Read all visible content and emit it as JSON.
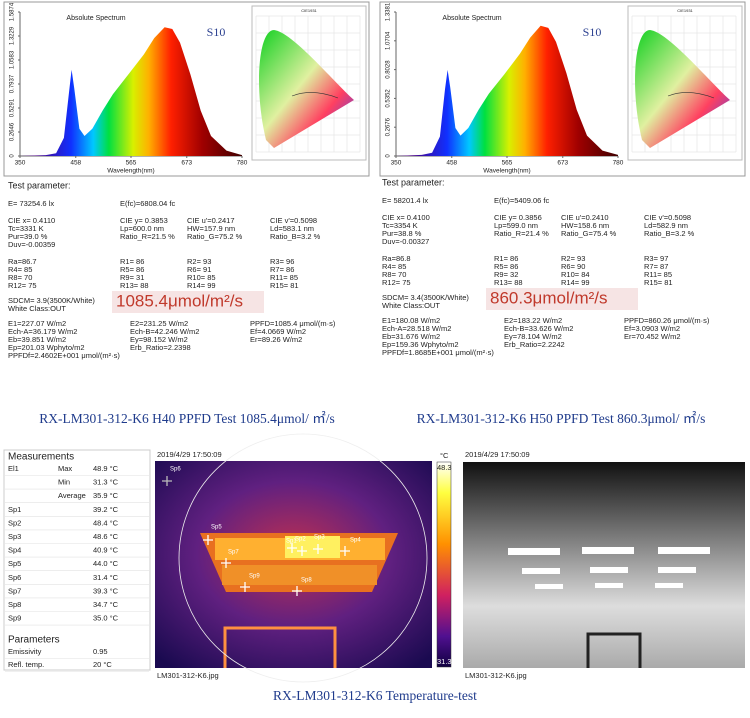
{
  "chart_data": [
    {
      "type": "area",
      "title": "Absolute Spectrum",
      "annotation": "S10",
      "x_label": "Wavelength(nm)",
      "inset_title": "CIE1931",
      "x": [
        350,
        400,
        420,
        435,
        445,
        450,
        455,
        465,
        475,
        490,
        510,
        530,
        560,
        590,
        610,
        630,
        645,
        660,
        680,
        700,
        720,
        750,
        780
      ],
      "values": [
        0,
        0.01,
        0.03,
        0.2,
        0.7,
        0.95,
        0.75,
        0.3,
        0.22,
        0.3,
        0.5,
        0.68,
        0.9,
        1.12,
        1.3,
        1.42,
        1.4,
        1.25,
        0.9,
        0.5,
        0.22,
        0.06,
        0.01
      ],
      "xlim": [
        350,
        780
      ],
      "xticks": [
        350,
        458,
        565,
        673,
        780
      ],
      "ylim": [
        0,
        1.5874
      ],
      "yticks": [
        0,
        0.2646,
        0.5291,
        0.7937,
        1.0583,
        1.3229,
        1.5874
      ]
    },
    {
      "type": "area",
      "title": "Absolute Spectrum",
      "annotation": "S10",
      "x_label": "Wavelength(nm)",
      "inset_title": "CIE1931",
      "x": [
        350,
        400,
        420,
        435,
        445,
        450,
        455,
        465,
        475,
        490,
        510,
        530,
        560,
        590,
        610,
        630,
        645,
        660,
        680,
        700,
        720,
        750,
        780
      ],
      "values": [
        0,
        0.01,
        0.03,
        0.18,
        0.62,
        0.8,
        0.64,
        0.26,
        0.19,
        0.26,
        0.43,
        0.58,
        0.76,
        0.95,
        1.1,
        1.21,
        1.19,
        1.06,
        0.77,
        0.43,
        0.19,
        0.05,
        0.01
      ],
      "xlim": [
        350,
        780
      ],
      "xticks": [
        350,
        458,
        565,
        673,
        780
      ],
      "ylim": [
        0,
        1.3381
      ],
      "yticks": [
        0,
        0.2676,
        0.5352,
        0.8028,
        1.0704,
        1.3381
      ]
    }
  ],
  "reports": [
    {
      "heading": "Test parameter:",
      "illuminance": [
        "E=  73254.6 lx",
        "E(fc)=6808.04 fc"
      ],
      "cie": [
        [
          "CIE x= 0.4110",
          "CIE y= 0.3853",
          "CIE u'=0.2417",
          "CIE v'=0.5098"
        ],
        [
          "Tc=3331 K",
          "Lp=600.0 nm",
          "HW=157.9 nm",
          "Ld=583.1 nm"
        ],
        [
          "Pur=39.0 %",
          "Ratio_R=21.5 %",
          "Ratio_G=75.2 %",
          "Ratio_B=3.2 %"
        ],
        [
          "Duv=-0.00359"
        ]
      ],
      "rendering": [
        [
          "Ra=86.7",
          "R1= 86",
          "R2= 93",
          "R3= 96"
        ],
        [
          "R4= 85",
          "R5= 86",
          "R6= 91",
          "R7= 86"
        ],
        [
          "R8= 70",
          "R9= 31",
          "R10= 85",
          "R11= 85"
        ],
        [
          "R12= 75",
          "R13= 88",
          "R14= 99",
          "R15= 81"
        ]
      ],
      "sdcm": [
        "SDCM= 3.9(3500K/White)",
        "White Class:OUT"
      ],
      "ppfd": "1085.4μmol/m²/s",
      "radiometric": [
        [
          "E1=227.07 W/m2",
          "E2=231.25 W/m2",
          "PPFD=1085.4 μmol/(m·s)"
        ],
        [
          "Ech-A=36.179 W/m2",
          "Ech-B=42.246 W/m2",
          "Ef=4.0669 W/m2"
        ],
        [
          "Eb=39.851 W/m2",
          "Ey=98.152 W/m2",
          "Er=89.26 W/m2"
        ],
        [
          "Ep=201.03 Wphyto/m2",
          "Erb_Ratio=2.2398"
        ],
        [
          "PPFDf=2.4602E+001 μmol/(m²·s)"
        ]
      ],
      "caption": "RX-LM301-312-K6 H40 PPFD Test 1085.4μmol/ ㎡/s"
    },
    {
      "heading": "Test parameter:",
      "illuminance": [
        "E=  58201.4 lx",
        "E(fc)=5409.06 fc"
      ],
      "cie": [
        [
          "CIE x= 0.4100",
          "CIE y= 0.3856",
          "CIE u'=0.2410",
          "CIE v'=0.5098"
        ],
        [
          "Tc=3354 K",
          "Lp=599.0 nm",
          "HW=158.6 nm",
          "Ld=582.9 nm"
        ],
        [
          "Pur=38.8 %",
          "Ratio_R=21.4 %",
          "Ratio_G=75.4 %",
          "Ratio_B=3.2 %"
        ],
        [
          "Duv=-0.00327"
        ]
      ],
      "rendering": [
        [
          "Ra=86.8",
          "R1= 86",
          "R2= 93",
          "R3= 97"
        ],
        [
          "R4= 85",
          "R5= 86",
          "R6= 90",
          "R7= 87"
        ],
        [
          "R8= 70",
          "R9= 32",
          "R10= 84",
          "R11= 85"
        ],
        [
          "R12= 75",
          "R13= 88",
          "R14= 99",
          "R15= 81"
        ]
      ],
      "sdcm": [
        "SDCM= 3.4(3500K/White)",
        "White Class:OUT"
      ],
      "ppfd": "860.3μmol/m²/s",
      "radiometric": [
        [
          "E1=180.08 W/m2",
          "E2=183.22 W/m2",
          "PPFD=860.26 μmol/(m·s)"
        ],
        [
          "Ech-A=28.518 W/m2",
          "Ech-B=33.626 W/m2",
          "Ef=3.0903 W/m2"
        ],
        [
          "Eb=31.676 W/m2",
          "Ey=78.104 W/m2",
          "Er=70.452 W/m2"
        ],
        [
          "Ep=159.36 Wphyto/m2",
          "Erb_Ratio=2.2242"
        ],
        [
          "PPFDf=1.8685E+001 μmol/(m²·s)"
        ]
      ],
      "caption": "RX-LM301-312-K6 H50 PPFD Test  860.3μmol/ ㎡/s"
    }
  ],
  "measurements": {
    "title": "Measurements",
    "el1": {
      "label": "El1",
      "rows": [
        [
          "Max",
          "48.9 °C"
        ],
        [
          "Min",
          "31.3 °C"
        ],
        [
          "Average",
          "35.9 °C"
        ]
      ]
    },
    "spots": [
      [
        "Sp1",
        "39.2 °C"
      ],
      [
        "Sp2",
        "48.4 °C"
      ],
      [
        "Sp3",
        "48.6 °C"
      ],
      [
        "Sp4",
        "40.9 °C"
      ],
      [
        "Sp5",
        "44.0 °C"
      ],
      [
        "Sp6",
        "31.4 °C"
      ],
      [
        "Sp7",
        "39.3 °C"
      ],
      [
        "Sp8",
        "34.7 °C"
      ],
      [
        "Sp9",
        "35.0 °C"
      ]
    ],
    "parameters_title": "Parameters",
    "parameters": [
      [
        "Emissivity",
        "0.95"
      ],
      [
        "Refl. temp.",
        "20 °C"
      ]
    ]
  },
  "thermal": {
    "timestamp": "2019/4/29 17:50:09",
    "unit": "°C",
    "scale_max": "48.3",
    "scale_min": "31.3",
    "file": "LM301-312-K6.jpg",
    "spot_labels": [
      "Sp1",
      "Sp2",
      "Sp3",
      "Sp4",
      "Sp5",
      "Sp6",
      "Sp7",
      "Sp8",
      "Sp9"
    ]
  },
  "photo": {
    "timestamp": "2019/4/29 17:50:09",
    "file": "LM301-312-K6.jpg"
  },
  "caption": "RX-LM301-312-K6 Temperature-test"
}
